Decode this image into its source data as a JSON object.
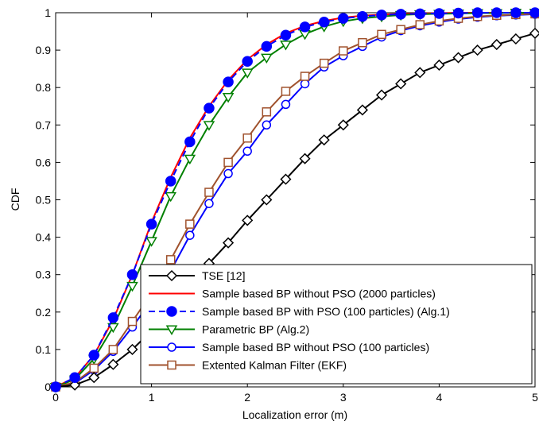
{
  "chart_data": {
    "type": "line",
    "title": "",
    "xlabel": "Localization error (m)",
    "ylabel": "CDF",
    "xlim": [
      0,
      5
    ],
    "ylim": [
      0,
      1
    ],
    "x_ticks": [
      0,
      1,
      2,
      3,
      4,
      5
    ],
    "y_ticks": [
      0,
      0.1,
      0.2,
      0.3,
      0.4,
      0.5,
      0.6,
      0.7,
      0.8,
      0.9,
      1
    ],
    "x_tick_labels": [
      "0",
      "1",
      "2",
      "3",
      "4",
      "5"
    ],
    "y_tick_labels": [
      "0",
      "0.1",
      "0.2",
      "0.3",
      "0.4",
      "0.5",
      "0.6",
      "0.7",
      "0.8",
      "0.9",
      "1"
    ],
    "grid": false,
    "legend_position": "bottom-right",
    "x": [
      0,
      0.2,
      0.4,
      0.6,
      0.8,
      1.0,
      1.2,
      1.4,
      1.6,
      1.8,
      2.0,
      2.2,
      2.4,
      2.6,
      2.8,
      3.0,
      3.2,
      3.4,
      3.6,
      3.8,
      4.0,
      4.2,
      4.4,
      4.6,
      4.8,
      5.0
    ],
    "series": [
      {
        "name": "TSE [12]",
        "color": "#000000",
        "line_style": "solid",
        "marker": "diamond",
        "marker_fill": "none",
        "values": [
          0,
          0.005,
          0.025,
          0.06,
          0.1,
          0.15,
          0.21,
          0.27,
          0.33,
          0.385,
          0.445,
          0.5,
          0.555,
          0.61,
          0.66,
          0.7,
          0.74,
          0.78,
          0.81,
          0.84,
          0.86,
          0.88,
          0.9,
          0.915,
          0.93,
          0.945
        ]
      },
      {
        "name": "Sample based BP without PSO (2000 particles)",
        "color": "#ff0000",
        "line_style": "solid",
        "marker": "none",
        "marker_fill": "none",
        "values": [
          0,
          0.025,
          0.085,
          0.18,
          0.3,
          0.44,
          0.56,
          0.665,
          0.75,
          0.82,
          0.875,
          0.915,
          0.945,
          0.965,
          0.978,
          0.987,
          0.992,
          0.995,
          0.997,
          0.998,
          0.999,
          1.0,
          1.0,
          1.0,
          1.0,
          1.0
        ]
      },
      {
        "name": "Sample based BP with PSO (100 particles) (Alg.1)",
        "color": "#0000ff",
        "line_style": "dashed",
        "marker": "circle",
        "marker_fill": "filled",
        "values": [
          0,
          0.025,
          0.085,
          0.185,
          0.3,
          0.435,
          0.55,
          0.655,
          0.745,
          0.815,
          0.87,
          0.91,
          0.94,
          0.962,
          0.975,
          0.985,
          0.99,
          0.994,
          0.996,
          0.997,
          0.998,
          0.999,
          1.0,
          1.0,
          1.0,
          1.0
        ]
      },
      {
        "name": "Parametric BP (Alg.2)",
        "color": "#008000",
        "line_style": "solid",
        "marker": "triangle-down",
        "marker_fill": "none",
        "values": [
          0,
          0.02,
          0.075,
          0.16,
          0.27,
          0.39,
          0.51,
          0.61,
          0.7,
          0.775,
          0.84,
          0.88,
          0.915,
          0.943,
          0.963,
          0.977,
          0.985,
          0.99,
          0.994,
          0.996,
          0.997,
          0.998,
          0.999,
          0.999,
          1.0,
          1.0
        ]
      },
      {
        "name": "Sample based BP without PSO (100 particles)",
        "color": "#0000ff",
        "line_style": "solid",
        "marker": "circle",
        "marker_fill": "none",
        "values": [
          0,
          0.01,
          0.045,
          0.095,
          0.16,
          0.23,
          0.31,
          0.405,
          0.49,
          0.57,
          0.63,
          0.7,
          0.755,
          0.81,
          0.855,
          0.885,
          0.91,
          0.935,
          0.952,
          0.965,
          0.975,
          0.983,
          0.988,
          0.992,
          0.994,
          0.996
        ]
      },
      {
        "name": "Extented Kalman Filter (EKF)",
        "color": "#a0522d",
        "line_style": "solid",
        "marker": "square",
        "marker_fill": "none",
        "values": [
          0,
          0.012,
          0.05,
          0.1,
          0.175,
          0.25,
          0.34,
          0.435,
          0.52,
          0.6,
          0.665,
          0.735,
          0.79,
          0.83,
          0.865,
          0.898,
          0.92,
          0.942,
          0.955,
          0.968,
          0.978,
          0.985,
          0.99,
          0.993,
          0.995,
          0.997
        ]
      }
    ]
  }
}
